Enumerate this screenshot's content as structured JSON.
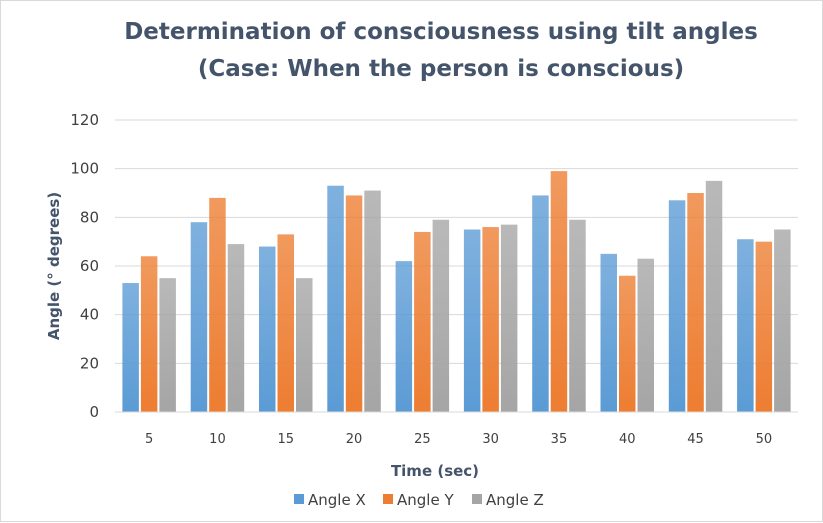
{
  "chart_data": {
    "type": "bar",
    "title": [
      "Determination of consciousness using tilt angles",
      "(Case: When the person is conscious)"
    ],
    "xlabel": "Time (sec)",
    "ylabel": "Angle (° degrees)",
    "categories": [
      "5",
      "10",
      "15",
      "20",
      "25",
      "30",
      "35",
      "40",
      "45",
      "50"
    ],
    "ylim": [
      0,
      120
    ],
    "yticks": [
      "0",
      "20",
      "40",
      "60",
      "80",
      "100",
      "120"
    ],
    "grid": true,
    "legend_position": "bottom",
    "series": [
      {
        "name": "Angle X",
        "color": "#5b9bd5",
        "values": [
          53,
          78,
          68,
          93,
          62,
          75,
          89,
          65,
          87,
          71
        ]
      },
      {
        "name": "Angle Y",
        "color": "#ed7d31",
        "values": [
          64,
          88,
          73,
          89,
          74,
          76,
          99,
          56,
          90,
          70
        ]
      },
      {
        "name": "Angle Z",
        "color": "#a5a5a5",
        "values": [
          55,
          69,
          55,
          91,
          79,
          77,
          79,
          63,
          95,
          75
        ]
      }
    ]
  }
}
